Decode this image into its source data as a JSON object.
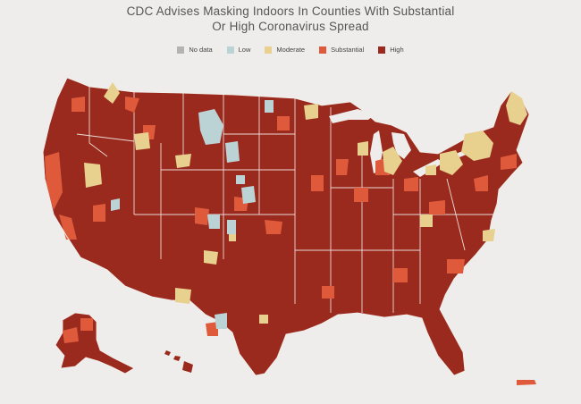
{
  "title_line1": "CDC Advises Masking Indoors In Counties With Substantial",
  "title_line2": "Or High Coronavirus  Spread",
  "legend": [
    {
      "label": "No data",
      "color": "#b3b3b3"
    },
    {
      "label": "Low",
      "color": "#bcd3d6"
    },
    {
      "label": "Moderate",
      "color": "#e8d08e"
    },
    {
      "label": "Substantial",
      "color": "#de5a3a"
    },
    {
      "label": "High",
      "color": "#9b2a1e"
    }
  ]
}
